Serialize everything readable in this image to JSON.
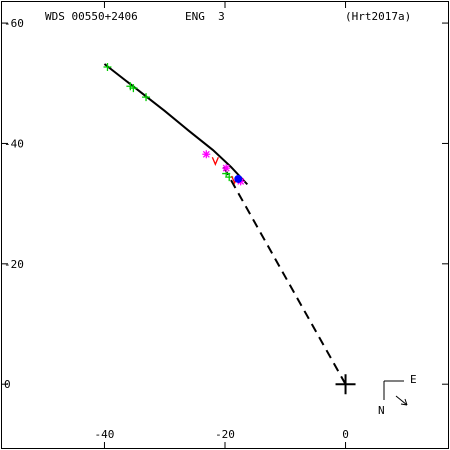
{
  "header": {
    "wds": "WDS 00550+2406",
    "grade": "ENG  3",
    "ref": "(Hrt2017a)"
  },
  "compass": {
    "east": "E",
    "north": "N"
  },
  "chart_data": {
    "type": "scatter",
    "xlim": [
      -57,
      17
    ],
    "ylim": [
      -63.5,
      10.6
    ],
    "y_inverted": true,
    "xticks": [
      -40,
      -20,
      0
    ],
    "yticks": [
      -60,
      -40,
      -20,
      0
    ],
    "series": [
      {
        "color": "#000000",
        "mode": "line",
        "dashed": false,
        "x": [
          -40,
          -35,
          -30,
          -26,
          -22,
          -19,
          -16.3
        ],
        "values": [
          -53.2,
          -49.3,
          -45.4,
          -42.1,
          -38.9,
          -36.1,
          -33.2
        ]
      },
      {
        "color": "#000000",
        "mode": "line",
        "dashed": true,
        "x": [
          0,
          -20.4
        ],
        "values": [
          0,
          -36.4
        ]
      },
      {
        "color": "#00cc00",
        "mode": "marker",
        "marker": "plus",
        "x": [
          -39.5,
          -35.7,
          -35.2,
          -33.1,
          -19.8,
          -19.3
        ],
        "values": [
          -52.7,
          -49.5,
          -49.2,
          -47.7,
          -35.0,
          -34.4
        ]
      },
      {
        "color": "#ff00ff",
        "mode": "marker",
        "marker": "asterisk",
        "x": [
          -23.1,
          -19.8,
          -17.4
        ],
        "values": [
          -38.2,
          -35.9,
          -33.7
        ]
      },
      {
        "color": "#ff0000",
        "mode": "marker",
        "marker": "tick",
        "x": [
          -21.6,
          -18.4
        ],
        "values": [
          -37.2,
          -34.1
        ]
      },
      {
        "color": "#0000ff",
        "mode": "marker",
        "marker": "dot",
        "x": [
          -17.8
        ],
        "values": [
          -34.1
        ]
      },
      {
        "color": "#000000",
        "mode": "marker",
        "marker": "bigplus",
        "x": [
          0
        ],
        "values": [
          0
        ]
      }
    ]
  }
}
